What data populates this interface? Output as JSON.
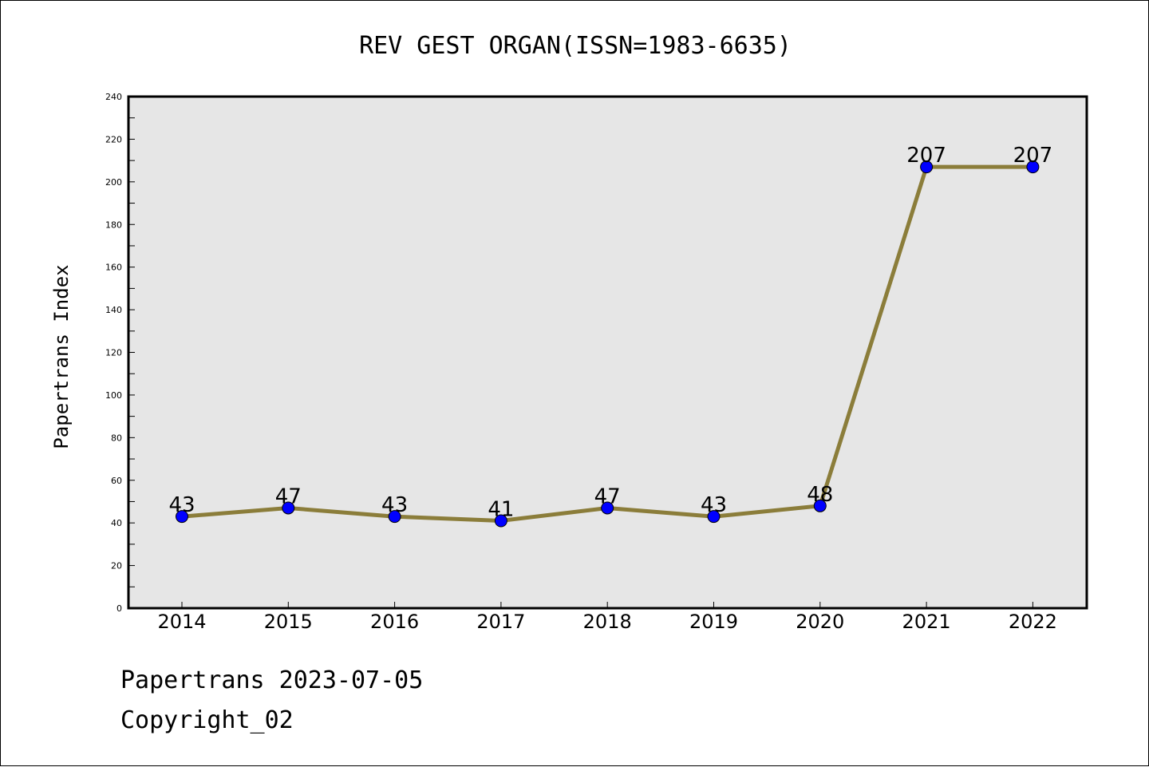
{
  "chart_data": {
    "type": "line",
    "title": "REV GEST ORGAN(ISSN=1983-6635)",
    "xlabel": "",
    "ylabel": "Papertrans Index",
    "categories": [
      "2014",
      "2015",
      "2016",
      "2017",
      "2018",
      "2019",
      "2020",
      "2021",
      "2022"
    ],
    "series": [
      {
        "values": [
          43,
          47,
          43,
          41,
          47,
          43,
          48,
          207,
          207
        ]
      }
    ],
    "data_labels": [
      "43",
      "47",
      "43",
      "41",
      "47",
      "43",
      "48",
      "207",
      "207"
    ],
    "ylim": [
      0,
      240
    ],
    "yticks": [
      "0",
      "20",
      "40",
      "60",
      "80",
      "100",
      "120",
      "140",
      "160",
      "180",
      "200",
      "220",
      "240"
    ],
    "grid": false,
    "legend": "none",
    "colors": {
      "line": "#8b7d3a",
      "marker": "#0000ff",
      "plot_background": "#e6e6e6"
    }
  },
  "footer": {
    "line1": "Papertrans 2023-07-05",
    "line2": "Copyright_02"
  }
}
